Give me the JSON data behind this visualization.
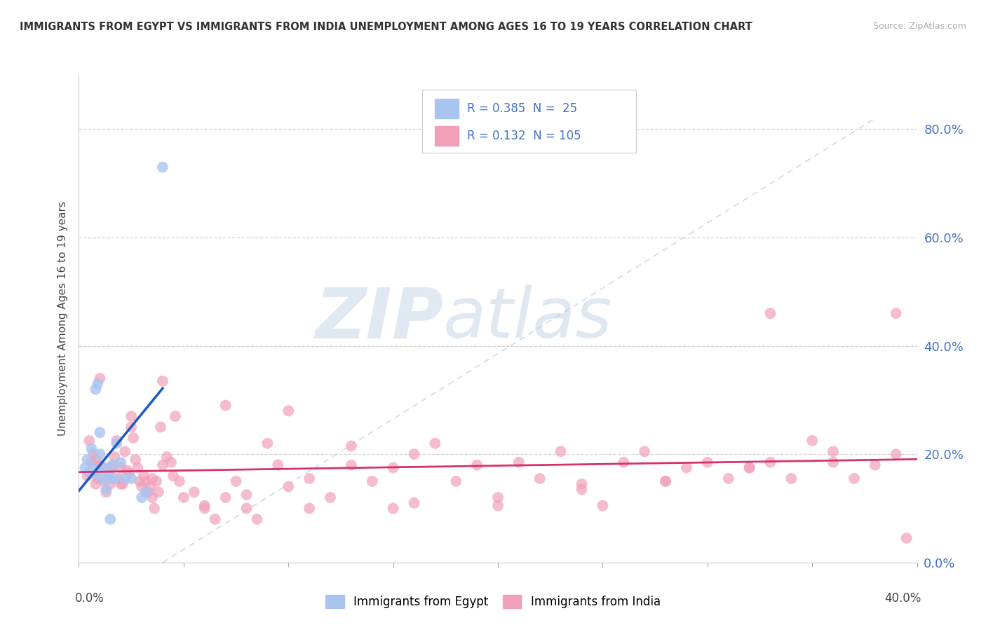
{
  "title": "IMMIGRANTS FROM EGYPT VS IMMIGRANTS FROM INDIA UNEMPLOYMENT AMONG AGES 16 TO 19 YEARS CORRELATION CHART",
  "source": "Source: ZipAtlas.com",
  "ylabel": "Unemployment Among Ages 16 to 19 years",
  "xlim": [
    0.0,
    0.4
  ],
  "ylim": [
    0.0,
    0.9
  ],
  "yticks": [
    0.0,
    0.2,
    0.4,
    0.6,
    0.8
  ],
  "ytick_labels": [
    "0.0%",
    "20.0%",
    "40.0%",
    "60.0%",
    "80.0%"
  ],
  "xtick_labels": [
    "0.0%",
    "40.0%"
  ],
  "R_egypt": 0.385,
  "N_egypt": 25,
  "R_india": 0.132,
  "N_india": 105,
  "color_egypt": "#aac4f0",
  "color_india": "#f0a0b8",
  "color_egypt_line": "#1a5abf",
  "color_india_line": "#d93070",
  "color_diagonal": "#b0c8e8",
  "watermark_zip": "ZIP",
  "watermark_atlas": "atlas",
  "egypt_x": [
    0.003,
    0.004,
    0.005,
    0.006,
    0.007,
    0.008,
    0.008,
    0.009,
    0.01,
    0.01,
    0.011,
    0.012,
    0.013,
    0.014,
    0.015,
    0.015,
    0.016,
    0.017,
    0.018,
    0.02,
    0.022,
    0.025,
    0.03,
    0.032,
    0.04
  ],
  "egypt_y": [
    0.175,
    0.19,
    0.165,
    0.21,
    0.175,
    0.165,
    0.32,
    0.33,
    0.2,
    0.24,
    0.155,
    0.175,
    0.135,
    0.16,
    0.155,
    0.08,
    0.18,
    0.155,
    0.22,
    0.185,
    0.155,
    0.155,
    0.12,
    0.13,
    0.73
  ],
  "india_x": [
    0.004,
    0.005,
    0.006,
    0.007,
    0.008,
    0.008,
    0.009,
    0.01,
    0.011,
    0.012,
    0.013,
    0.014,
    0.015,
    0.016,
    0.017,
    0.018,
    0.019,
    0.02,
    0.021,
    0.022,
    0.023,
    0.024,
    0.025,
    0.026,
    0.027,
    0.028,
    0.029,
    0.03,
    0.031,
    0.032,
    0.033,
    0.034,
    0.035,
    0.036,
    0.037,
    0.038,
    0.039,
    0.04,
    0.042,
    0.044,
    0.046,
    0.048,
    0.05,
    0.055,
    0.06,
    0.065,
    0.07,
    0.075,
    0.08,
    0.085,
    0.09,
    0.095,
    0.1,
    0.11,
    0.12,
    0.13,
    0.14,
    0.15,
    0.16,
    0.17,
    0.18,
    0.19,
    0.2,
    0.21,
    0.22,
    0.23,
    0.24,
    0.25,
    0.26,
    0.27,
    0.28,
    0.29,
    0.3,
    0.31,
    0.32,
    0.33,
    0.34,
    0.35,
    0.36,
    0.37,
    0.38,
    0.39,
    0.395,
    0.01,
    0.015,
    0.02,
    0.025,
    0.035,
    0.045,
    0.06,
    0.08,
    0.1,
    0.13,
    0.16,
    0.2,
    0.24,
    0.28,
    0.32,
    0.36,
    0.39,
    0.04,
    0.07,
    0.11,
    0.15,
    0.33
  ],
  "india_y": [
    0.16,
    0.225,
    0.185,
    0.2,
    0.145,
    0.19,
    0.155,
    0.18,
    0.175,
    0.15,
    0.13,
    0.165,
    0.145,
    0.175,
    0.195,
    0.225,
    0.155,
    0.175,
    0.145,
    0.205,
    0.17,
    0.165,
    0.25,
    0.23,
    0.19,
    0.175,
    0.15,
    0.14,
    0.16,
    0.15,
    0.13,
    0.14,
    0.12,
    0.1,
    0.15,
    0.13,
    0.25,
    0.18,
    0.195,
    0.185,
    0.27,
    0.15,
    0.12,
    0.13,
    0.1,
    0.08,
    0.12,
    0.15,
    0.1,
    0.08,
    0.22,
    0.18,
    0.28,
    0.1,
    0.12,
    0.18,
    0.15,
    0.1,
    0.2,
    0.22,
    0.15,
    0.18,
    0.105,
    0.185,
    0.155,
    0.205,
    0.135,
    0.105,
    0.185,
    0.205,
    0.15,
    0.175,
    0.185,
    0.155,
    0.175,
    0.185,
    0.155,
    0.225,
    0.205,
    0.155,
    0.18,
    0.46,
    0.045,
    0.34,
    0.175,
    0.145,
    0.27,
    0.155,
    0.16,
    0.105,
    0.125,
    0.14,
    0.215,
    0.11,
    0.12,
    0.145,
    0.15,
    0.175,
    0.185,
    0.2,
    0.335,
    0.29,
    0.155,
    0.175,
    0.46
  ]
}
